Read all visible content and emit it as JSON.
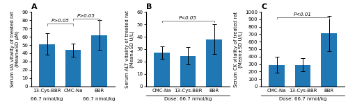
{
  "chart_data": [
    {
      "type": "bar",
      "panel_label": "A",
      "ylabel": "Serum UA vitality of treated rat\n(Mean±SD μM)",
      "categories": [
        "13-Cys-BBR",
        "CMC-Na",
        "BBR"
      ],
      "values": [
        51,
        44,
        62
      ],
      "errors": [
        13,
        8,
        18
      ],
      "ylim": [
        0,
        90
      ],
      "yticks": [
        0,
        10,
        20,
        30,
        40,
        50,
        60,
        70,
        80,
        90
      ],
      "annotations": [
        {
          "text": "P>0.05",
          "from": "13-Cys-BBR",
          "to": "CMC-Na",
          "y": 76
        },
        {
          "text": "P>0.05",
          "from": "CMC-Na",
          "to": "BBR",
          "y": 82
        }
      ],
      "category_notes": [
        {
          "category": "13-Cys-BBR",
          "text": "66.7 nmol/kg"
        },
        {
          "category": "BBR",
          "text": "66.7 nmol/kg"
        }
      ]
    },
    {
      "type": "bar",
      "panel_label": "B",
      "ylabel": "Serum ALT vitality of treated rat\n(Mean±SD U/L)",
      "categories": [
        "CMC-Na",
        "13-Cys-BBR",
        "BBR"
      ],
      "values": [
        27,
        24.5,
        38
      ],
      "errors": [
        5,
        7,
        12
      ],
      "ylim": [
        0,
        60
      ],
      "yticks": [
        0,
        10,
        20,
        30,
        40,
        50,
        60
      ],
      "annotations": [
        {
          "text": "P<0.05",
          "from": "CMC-Na",
          "to": "BBR",
          "y": 53
        }
      ],
      "group_note": "Dose: 66.7 nmol/kg"
    },
    {
      "type": "bar",
      "panel_label": "C",
      "ylabel": "Serum CK vitality of treated rat\n(Mean±SD U/L)",
      "categories": [
        "CMC-Na",
        "13-Cys-BBR",
        "BBR"
      ],
      "values": [
        290,
        290,
        710
      ],
      "errors": [
        110,
        90,
        240
      ],
      "ylim": [
        0,
        1000
      ],
      "yticks": [
        0,
        100,
        200,
        300,
        400,
        500,
        600,
        700,
        800,
        900,
        1000
      ],
      "annotations": [
        {
          "text": "P<0.01",
          "from": "CMC-Na",
          "to": "BBR",
          "y": 930
        }
      ],
      "group_note": "Dose: 66.7 nmol/kg"
    }
  ]
}
